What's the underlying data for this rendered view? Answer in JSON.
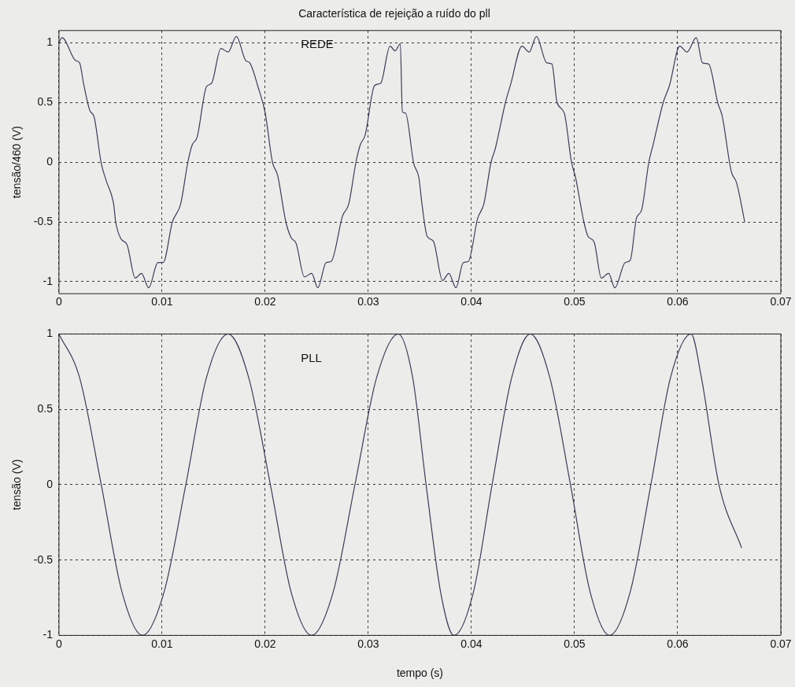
{
  "chart_data": [
    {
      "type": "line",
      "title": "Característica de rejeição a ruído do pll",
      "ylabel": "tensão/460 (V)",
      "xlim": [
        0,
        0.07
      ],
      "xticks": [
        0,
        0.01,
        0.02,
        0.03,
        0.04,
        0.05,
        0.06,
        0.07
      ],
      "ylim": [
        -1.1,
        1.1
      ],
      "yticks": [
        -1,
        -0.5,
        0,
        0.5,
        1
      ],
      "grid": true,
      "line_style": "solid",
      "marker": "none",
      "series": [
        {
          "name": "REDE",
          "color": "#3c3c5a",
          "x": [
            0,
            0.0003,
            0.0016,
            0.002,
            0.0024,
            0.003,
            0.0034,
            0.0041,
            0.0046,
            0.0053,
            0.0055,
            0.006,
            0.0066,
            0.0074,
            0.008,
            0.0087,
            0.0096,
            0.0101,
            0.011,
            0.0118,
            0.0125,
            0.0129,
            0.0134,
            0.0143,
            0.0148,
            0.0157,
            0.0164,
            0.0172,
            0.0181,
            0.0185,
            0.0193,
            0.02,
            0.0207,
            0.0212,
            0.022,
            0.0225,
            0.023,
            0.0238,
            0.0245,
            0.0251,
            0.0259,
            0.0264,
            0.0275,
            0.0281,
            0.0288,
            0.0292,
            0.0297,
            0.0306,
            0.0312,
            0.0321,
            0.0326,
            0.0331,
            0.0333,
            0.0336,
            0.0344,
            0.0349,
            0.0352,
            0.0357,
            0.0363,
            0.0372,
            0.0378,
            0.0385,
            0.0392,
            0.0397,
            0.0406,
            0.0412,
            0.0419,
            0.0423,
            0.0433,
            0.0438,
            0.0449,
            0.0456,
            0.0463,
            0.0473,
            0.0478,
            0.0483,
            0.049,
            0.0497,
            0.0501,
            0.0509,
            0.0513,
            0.0519,
            0.0526,
            0.0533,
            0.0539,
            0.0549,
            0.0554,
            0.056,
            0.0565,
            0.0572,
            0.0576,
            0.0586,
            0.0592,
            0.0602,
            0.0609,
            0.0618,
            0.0624,
            0.063,
            0.0639,
            0.0643,
            0.0652,
            0.0657,
            0.0665
          ],
          "values": [
            1.0,
            1.04,
            0.85,
            0.83,
            0.65,
            0.43,
            0.38,
            -0.01,
            -0.16,
            -0.35,
            -0.5,
            -0.64,
            -0.69,
            -0.97,
            -0.93,
            -1.05,
            -0.84,
            -0.84,
            -0.5,
            -0.35,
            0,
            0.14,
            0.21,
            0.63,
            0.66,
            0.95,
            0.92,
            1.05,
            0.85,
            0.83,
            0.63,
            0.41,
            0,
            -0.11,
            -0.5,
            -0.63,
            -0.68,
            -0.96,
            -0.93,
            -1.05,
            -0.84,
            -0.83,
            -0.45,
            -0.35,
            0,
            0.14,
            0.23,
            0.64,
            0.66,
            0.97,
            0.93,
            0.99,
            0.42,
            0.41,
            -0.01,
            -0.13,
            -0.35,
            -0.62,
            -0.66,
            -0.99,
            -0.93,
            -1.05,
            -0.84,
            -0.83,
            -0.47,
            -0.35,
            0,
            0.11,
            0.5,
            0.65,
            0.97,
            0.92,
            1.05,
            0.83,
            0.82,
            0.5,
            0.41,
            0,
            -0.13,
            -0.5,
            -0.62,
            -0.67,
            -0.97,
            -0.93,
            -1.05,
            -0.84,
            -0.82,
            -0.47,
            -0.4,
            0,
            0.14,
            0.5,
            0.64,
            0.97,
            0.92,
            1.04,
            0.83,
            0.82,
            0.49,
            0.39,
            -0.08,
            -0.17,
            -0.5
          ]
        }
      ]
    },
    {
      "type": "line",
      "xlabel": "tempo (s)",
      "ylabel": "tensão (V)",
      "xlim": [
        0,
        0.07
      ],
      "xticks": [
        0,
        0.01,
        0.02,
        0.03,
        0.04,
        0.05,
        0.06,
        0.07
      ],
      "ylim": [
        -1,
        1
      ],
      "yticks": [
        -1,
        -0.5,
        0,
        0.5,
        1
      ],
      "grid": true,
      "line_style": "solid",
      "marker": "none",
      "series": [
        {
          "name": "PLL",
          "color": "#3c3c5a",
          "x": [
            0,
            0.002,
            0.0041,
            0.0061,
            0.0081,
            0.0102,
            0.0123,
            0.0143,
            0.0164,
            0.0184,
            0.0205,
            0.0225,
            0.0245,
            0.0266,
            0.0287,
            0.0308,
            0.0329,
            0.0343,
            0.0356,
            0.037,
            0.0383,
            0.0402,
            0.042,
            0.0439,
            0.0457,
            0.0476,
            0.0496,
            0.0515,
            0.0534,
            0.0554,
            0.0574,
            0.0593,
            0.0613,
            0.0623,
            0.064,
            0.0662
          ],
          "values": [
            1,
            0.71,
            0,
            -0.71,
            -1,
            -0.71,
            0,
            0.71,
            1,
            0.71,
            0,
            -0.71,
            -1,
            -0.71,
            0,
            0.71,
            1,
            0.71,
            0,
            -0.71,
            -1,
            -0.71,
            0,
            0.71,
            1,
            0.71,
            0,
            -0.71,
            -1,
            -0.71,
            0,
            0.71,
            1,
            0.71,
            0,
            -0.42
          ]
        }
      ]
    }
  ]
}
